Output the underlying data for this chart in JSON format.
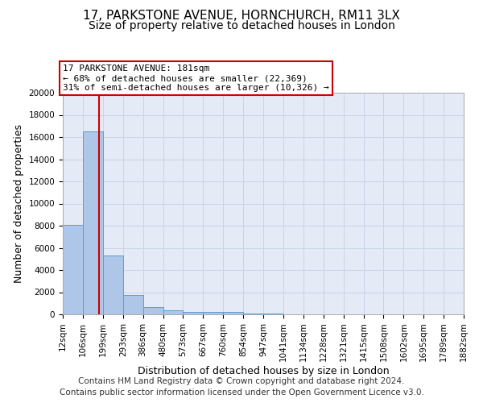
{
  "title1": "17, PARKSTONE AVENUE, HORNCHURCH, RM11 3LX",
  "title2": "Size of property relative to detached houses in London",
  "xlabel": "Distribution of detached houses by size in London",
  "ylabel": "Number of detached properties",
  "bar_color": "#aec6e8",
  "bar_edge_color": "#5a9fd4",
  "bar_values": [
    8100,
    16500,
    5300,
    1750,
    650,
    350,
    250,
    200,
    200,
    100,
    50,
    20,
    10,
    5,
    3,
    2,
    1,
    1,
    1,
    1
  ],
  "bin_edges": [
    12,
    106,
    199,
    293,
    386,
    480,
    573,
    667,
    760,
    854,
    947,
    1041,
    1134,
    1228,
    1321,
    1415,
    1508,
    1602,
    1695,
    1789,
    1882
  ],
  "tick_labels": [
    "12sqm",
    "106sqm",
    "199sqm",
    "293sqm",
    "386sqm",
    "480sqm",
    "573sqm",
    "667sqm",
    "760sqm",
    "854sqm",
    "947sqm",
    "1041sqm",
    "1134sqm",
    "1228sqm",
    "1321sqm",
    "1415sqm",
    "1508sqm",
    "1602sqm",
    "1695sqm",
    "1789sqm",
    "1882sqm"
  ],
  "property_size": 181,
  "property_line_color": "#cc0000",
  "annotation_line1": "17 PARKSTONE AVENUE: 181sqm",
  "annotation_line2": "← 68% of detached houses are smaller (22,369)",
  "annotation_line3": "31% of semi-detached houses are larger (10,326) →",
  "annotation_box_color": "#cc0000",
  "annotation_bg": "#ffffff",
  "ylim": [
    0,
    20000
  ],
  "yticks": [
    0,
    2000,
    4000,
    6000,
    8000,
    10000,
    12000,
    14000,
    16000,
    18000,
    20000
  ],
  "grid_color": "#c8d4e8",
  "bg_color": "#e4eaf6",
  "footer_line1": "Contains HM Land Registry data © Crown copyright and database right 2024.",
  "footer_line2": "Contains public sector information licensed under the Open Government Licence v3.0.",
  "title_fontsize": 11,
  "subtitle_fontsize": 10,
  "axis_label_fontsize": 9,
  "tick_fontsize": 7.5,
  "footer_fontsize": 7.5,
  "annot_fontsize": 8
}
